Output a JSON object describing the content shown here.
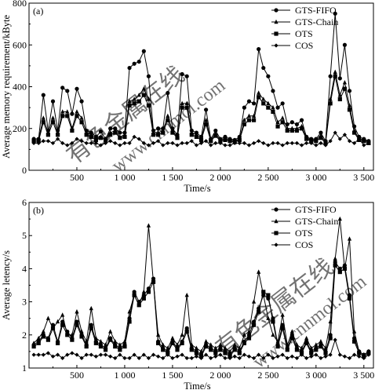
{
  "chart_data": [
    {
      "type": "line",
      "panel_label": "(a)",
      "xlabel": "Time/s",
      "ylabel": "Average memory requirement/kByte",
      "xlim": [
        0,
        3600
      ],
      "ylim": [
        0,
        800
      ],
      "xticks": [
        500,
        1000,
        1500,
        2000,
        2500,
        3000,
        3500
      ],
      "xtick_labels": [
        "500",
        "1 000",
        "1 500",
        "2 000",
        "2 500",
        "3 000",
        "3 500"
      ],
      "yticks": [
        0,
        200,
        400,
        600,
        800
      ],
      "ytick_labels": [
        "0",
        "200",
        "400",
        "600",
        "800"
      ],
      "legend_position": "top-right",
      "x": [
        50,
        100,
        150,
        200,
        250,
        300,
        350,
        400,
        450,
        500,
        550,
        600,
        650,
        700,
        750,
        800,
        850,
        900,
        950,
        1000,
        1050,
        1100,
        1150,
        1200,
        1250,
        1300,
        1350,
        1400,
        1450,
        1500,
        1550,
        1600,
        1650,
        1700,
        1750,
        1800,
        1850,
        1900,
        1950,
        2000,
        2050,
        2100,
        2150,
        2200,
        2250,
        2300,
        2350,
        2400,
        2450,
        2500,
        2550,
        2600,
        2650,
        2700,
        2750,
        2800,
        2850,
        2900,
        2950,
        3000,
        3050,
        3100,
        3150,
        3200,
        3250,
        3300,
        3350,
        3400,
        3450,
        3500,
        3550
      ],
      "series": [
        {
          "name": "GTS-FIFO",
          "marker": "circle",
          "values": [
            150,
            150,
            360,
            190,
            330,
            190,
            395,
            380,
            270,
            390,
            330,
            190,
            180,
            160,
            185,
            150,
            200,
            200,
            180,
            180,
            490,
            510,
            520,
            570,
            450,
            190,
            200,
            200,
            370,
            200,
            170,
            460,
            450,
            190,
            180,
            160,
            290,
            150,
            190,
            150,
            160,
            150,
            145,
            160,
            300,
            330,
            320,
            580,
            490,
            450,
            380,
            300,
            320,
            220,
            230,
            220,
            240,
            160,
            150,
            150,
            180,
            140,
            450,
            750,
            440,
            600,
            380,
            210,
            160,
            150,
            140
          ]
        },
        {
          "name": "GTS-Chain",
          "marker": "triangle",
          "values": [
            150,
            150,
            250,
            180,
            250,
            180,
            280,
            280,
            200,
            280,
            250,
            180,
            170,
            150,
            160,
            150,
            180,
            190,
            160,
            170,
            330,
            340,
            360,
            390,
            340,
            180,
            180,
            190,
            260,
            190,
            160,
            320,
            320,
            180,
            170,
            150,
            240,
            145,
            175,
            145,
            150,
            145,
            140,
            150,
            240,
            260,
            260,
            370,
            340,
            320,
            300,
            230,
            250,
            200,
            200,
            200,
            210,
            155,
            145,
            145,
            165,
            135,
            340,
            470,
            360,
            420,
            310,
            190,
            150,
            145,
            135
          ]
        },
        {
          "name": "OTS",
          "marker": "square",
          "values": [
            140,
            140,
            230,
            170,
            230,
            170,
            260,
            260,
            190,
            260,
            230,
            170,
            160,
            145,
            155,
            145,
            170,
            180,
            155,
            160,
            310,
            320,
            330,
            360,
            310,
            170,
            170,
            180,
            240,
            180,
            155,
            300,
            300,
            170,
            160,
            145,
            220,
            140,
            165,
            140,
            145,
            140,
            135,
            145,
            220,
            240,
            240,
            350,
            320,
            300,
            280,
            210,
            230,
            190,
            190,
            190,
            200,
            150,
            140,
            140,
            155,
            130,
            320,
            450,
            340,
            390,
            290,
            180,
            145,
            140,
            130
          ]
        },
        {
          "name": "COS",
          "marker": "diamond",
          "values": [
            130,
            130,
            140,
            140,
            130,
            150,
            130,
            120,
            130,
            150,
            140,
            130,
            130,
            130,
            120,
            130,
            140,
            130,
            120,
            130,
            130,
            160,
            150,
            130,
            120,
            130,
            140,
            120,
            130,
            130,
            120,
            130,
            130,
            140,
            120,
            130,
            140,
            120,
            130,
            130,
            120,
            120,
            130,
            130,
            130,
            120,
            130,
            140,
            130,
            120,
            130,
            130,
            120,
            130,
            130,
            130,
            120,
            130,
            130,
            120,
            130,
            120,
            140,
            180,
            150,
            170,
            140,
            130,
            150,
            120,
            130
          ]
        }
      ]
    },
    {
      "type": "line",
      "panel_label": "(b)",
      "xlabel": "Time/s",
      "ylabel": "Average letency/s",
      "xlim": [
        0,
        3600
      ],
      "ylim": [
        1,
        6
      ],
      "xticks": [
        500,
        1000,
        1500,
        2000,
        2500,
        3000,
        3500
      ],
      "xtick_labels": [
        "500",
        "1 000",
        "1 500",
        "2 000",
        "2 500",
        "3 000",
        "3 500"
      ],
      "yticks": [
        1,
        2,
        3,
        4,
        5,
        6
      ],
      "ytick_labels": [
        "1",
        "2",
        "3",
        "4",
        "5",
        "6"
      ],
      "legend_position": "top-right",
      "x": [
        50,
        100,
        150,
        200,
        250,
        300,
        350,
        400,
        450,
        500,
        550,
        600,
        650,
        700,
        750,
        800,
        850,
        900,
        950,
        1000,
        1050,
        1100,
        1150,
        1200,
        1250,
        1300,
        1350,
        1400,
        1450,
        1500,
        1550,
        1600,
        1650,
        1700,
        1750,
        1800,
        1850,
        1900,
        1950,
        2000,
        2050,
        2100,
        2150,
        2200,
        2250,
        2300,
        2350,
        2400,
        2450,
        2500,
        2550,
        2600,
        2650,
        2700,
        2750,
        2800,
        2850,
        2900,
        2950,
        3000,
        3050,
        3100,
        3150,
        3200,
        3250,
        3300,
        3350,
        3400,
        3450,
        3500,
        3550
      ],
      "series": [
        {
          "name": "GTS-FIFO",
          "marker": "circle",
          "values": [
            1.7,
            1.8,
            2.0,
            1.9,
            2.3,
            1.8,
            2.4,
            2.1,
            1.9,
            2.4,
            2.0,
            1.7,
            2.3,
            1.8,
            1.7,
            1.6,
            1.9,
            1.7,
            1.6,
            1.7,
            2.5,
            3.3,
            3.0,
            3.2,
            3.4,
            3.7,
            1.8,
            1.6,
            1.5,
            1.8,
            1.6,
            1.8,
            2.2,
            1.6,
            1.5,
            1.4,
            1.7,
            1.6,
            1.5,
            1.6,
            1.5,
            1.4,
            1.6,
            1.5,
            1.8,
            2.0,
            2.4,
            2.8,
            3.2,
            3.1,
            2.5,
            1.7,
            2.3,
            1.6,
            2.0,
            1.6,
            1.5,
            1.8,
            1.5,
            1.6,
            1.7,
            1.5,
            2.0,
            4.2,
            4.0,
            4.1,
            3.2,
            1.9,
            1.5,
            1.4,
            1.5
          ]
        },
        {
          "name": "GTS-Chain",
          "marker": "triangle",
          "values": [
            1.75,
            1.9,
            2.1,
            2.5,
            2.2,
            2.4,
            2.6,
            2.0,
            2.0,
            2.7,
            2.1,
            1.8,
            2.8,
            1.9,
            1.8,
            1.7,
            2.1,
            1.8,
            1.7,
            1.8,
            2.7,
            3.2,
            2.9,
            3.3,
            5.3,
            3.6,
            2.0,
            1.7,
            1.6,
            1.9,
            1.7,
            2.0,
            3.2,
            1.7,
            1.6,
            1.5,
            1.8,
            1.7,
            1.6,
            1.7,
            1.6,
            1.5,
            1.7,
            1.6,
            2.0,
            2.1,
            3.0,
            3.9,
            3.2,
            2.5,
            2.0,
            1.8,
            2.6,
            1.7,
            2.1,
            1.7,
            1.6,
            1.9,
            1.6,
            1.7,
            1.8,
            1.6,
            2.4,
            4.3,
            5.5,
            4.0,
            4.9,
            2.1,
            1.5,
            1.4,
            1.5
          ]
        },
        {
          "name": "OTS",
          "marker": "square",
          "values": [
            1.65,
            1.75,
            1.95,
            1.85,
            2.2,
            1.75,
            2.3,
            2.0,
            1.85,
            2.3,
            1.95,
            1.65,
            2.2,
            1.75,
            1.65,
            1.55,
            1.85,
            1.65,
            1.55,
            1.65,
            2.4,
            3.2,
            2.9,
            3.1,
            3.3,
            3.6,
            1.75,
            1.55,
            1.45,
            1.75,
            1.55,
            1.75,
            2.1,
            1.55,
            1.45,
            1.35,
            1.65,
            1.55,
            1.45,
            1.55,
            1.45,
            1.35,
            1.55,
            1.45,
            1.75,
            1.9,
            2.3,
            2.7,
            3.3,
            3.2,
            2.4,
            1.65,
            2.2,
            1.55,
            1.9,
            1.55,
            1.45,
            1.75,
            1.45,
            1.55,
            1.65,
            1.45,
            1.9,
            4.1,
            3.9,
            4.0,
            3.1,
            1.8,
            1.45,
            1.35,
            1.45
          ]
        },
        {
          "name": "COS",
          "marker": "diamond",
          "values": [
            1.4,
            1.4,
            1.4,
            1.45,
            1.35,
            1.4,
            1.3,
            1.4,
            1.45,
            1.4,
            1.3,
            1.4,
            1.4,
            1.35,
            1.4,
            1.4,
            1.35,
            1.3,
            1.4,
            1.3,
            1.3,
            1.4,
            1.3,
            1.4,
            1.3,
            1.4,
            1.35,
            1.3,
            1.4,
            1.3,
            1.35,
            1.4,
            1.3,
            1.3,
            1.35,
            1.3,
            1.4,
            1.3,
            1.35,
            1.4,
            1.3,
            1.3,
            1.35,
            1.3,
            1.4,
            1.35,
            1.3,
            1.4,
            1.3,
            1.4,
            1.3,
            1.35,
            1.4,
            1.3,
            1.35,
            1.3,
            1.4,
            1.3,
            1.35,
            1.4,
            1.3,
            1.35,
            1.4,
            1.85,
            1.4,
            1.35,
            1.3,
            1.4,
            1.35,
            1.3,
            1.4
          ]
        }
      ]
    }
  ],
  "watermark": {
    "upper": "有色金属在线",
    "lower": "www.cnnmol.com"
  }
}
